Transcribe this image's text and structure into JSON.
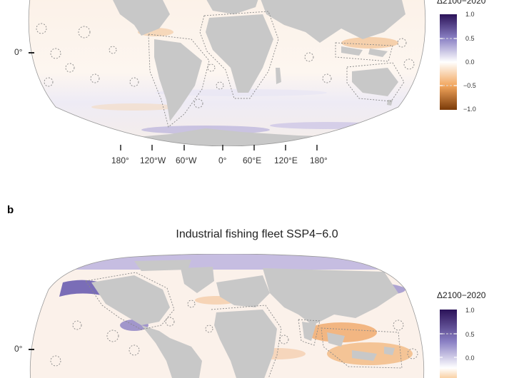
{
  "panels": [
    {
      "id": "a",
      "letter": "",
      "title": "",
      "lat_label": "0°",
      "lon_ticks": [
        "180°",
        "120°W",
        "60°W",
        "0°",
        "60°E",
        "120°E",
        "180°"
      ],
      "colorbar": {
        "title": "Δ2100−2020",
        "ticks": [
          "1.0",
          "0.5",
          "0.0",
          "−0.5",
          "−1.0"
        ],
        "range": [
          -1.0,
          1.0
        ],
        "colors": {
          "high": "#3a1e6a",
          "mid": "#ffffff",
          "low": "#8a4a10"
        }
      }
    },
    {
      "id": "b",
      "letter": "b",
      "title": "Industrial fishing fleet SSP4−6.0",
      "lat_label": "0°",
      "colorbar": {
        "title": "Δ2100−2020",
        "ticks": [
          "1.0",
          "0.5",
          "0.0"
        ],
        "range": [
          -1.0,
          1.0
        ]
      }
    }
  ],
  "colors": {
    "land": "#c8c8c8",
    "ocean_base": "#fbf2ea",
    "positive": "#6a5fb0",
    "negative": "#e0924a"
  }
}
